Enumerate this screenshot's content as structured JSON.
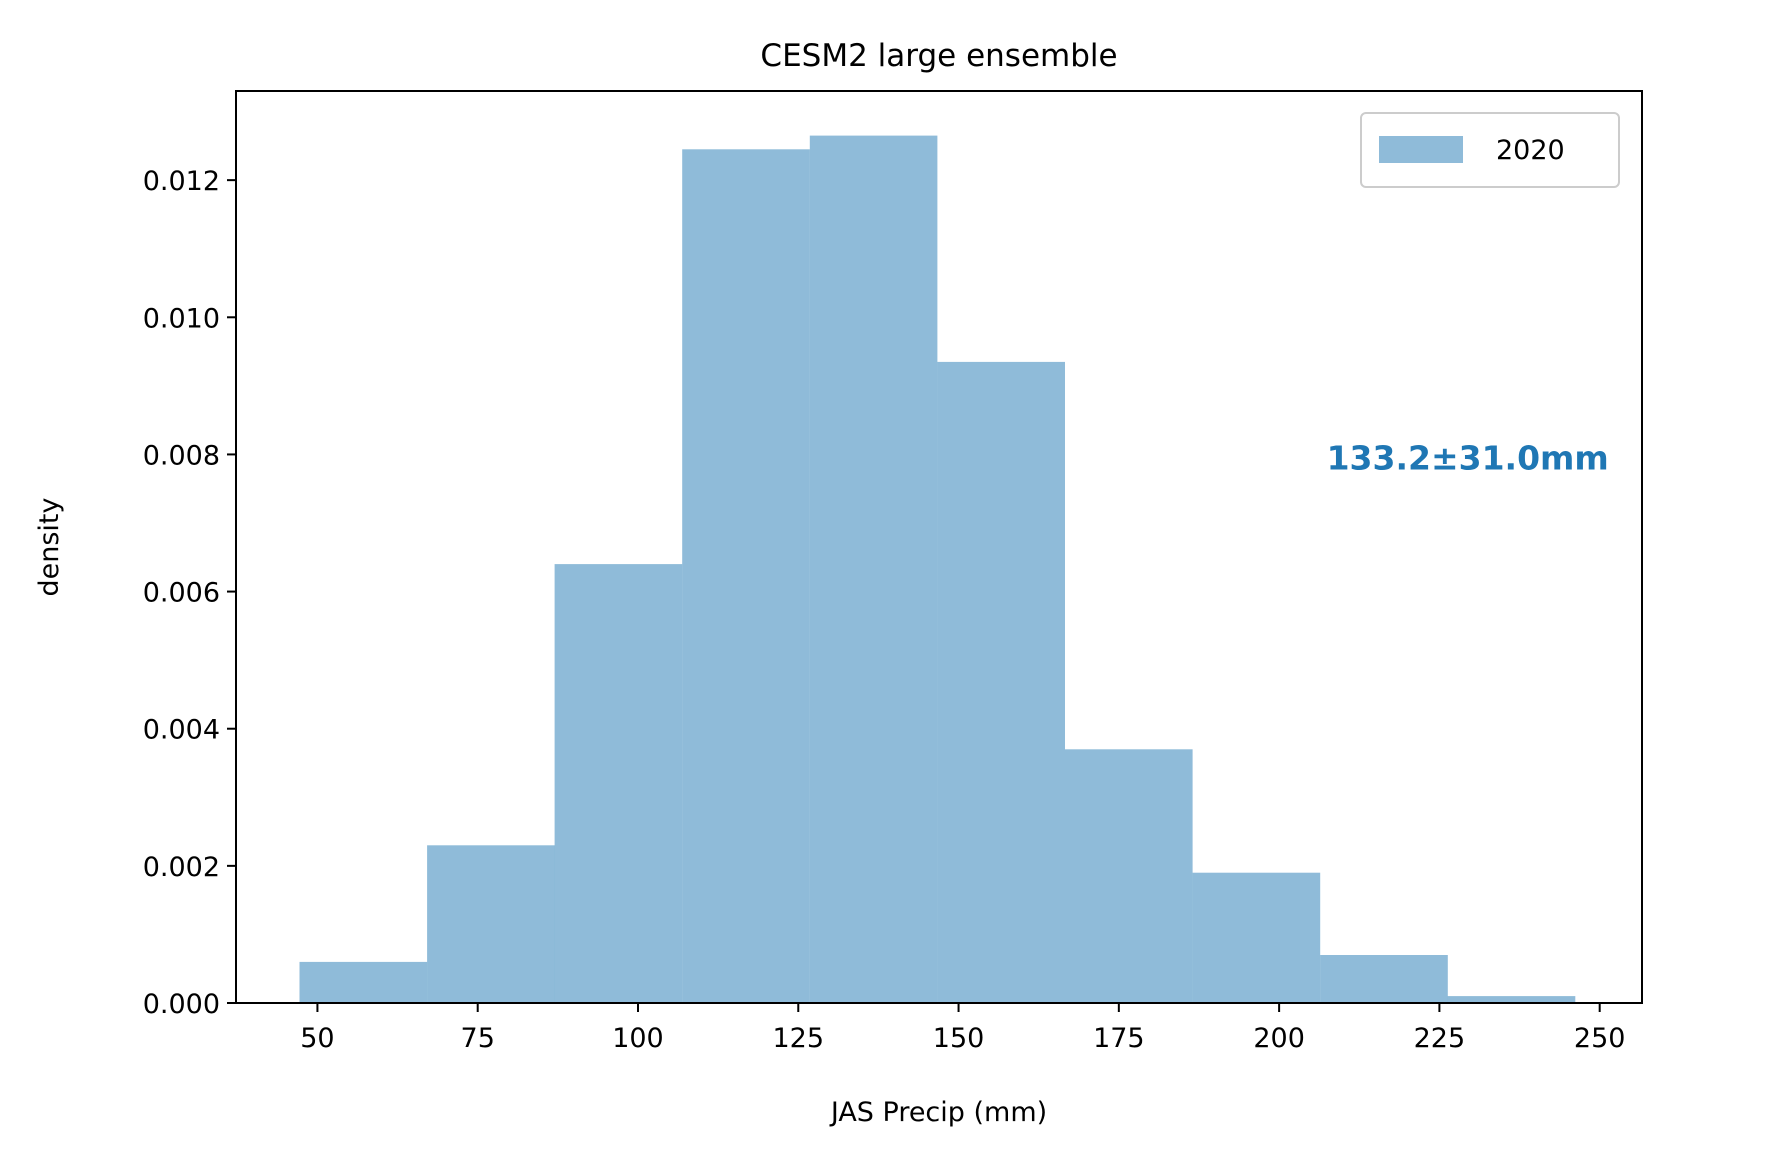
{
  "chart_data": {
    "type": "bar",
    "subtype": "histogram",
    "title": "CESM2 large ensemble",
    "xlabel": "JAS Precip (mm)",
    "ylabel": "density",
    "xlim": [
      37.3,
      256.6
    ],
    "ylim": [
      0,
      0.0133
    ],
    "xticks": [
      50,
      75,
      100,
      125,
      150,
      175,
      200,
      225,
      250
    ],
    "yticks": [
      0.0,
      0.002,
      0.004,
      0.006,
      0.008,
      0.01,
      0.012
    ],
    "ytick_labels": [
      "0.000",
      "0.002",
      "0.004",
      "0.006",
      "0.008",
      "0.010",
      "0.012"
    ],
    "grid": false,
    "legend_position": "top-right",
    "series": [
      {
        "name": "2020",
        "color": "#1f77b4",
        "alpha": 0.5,
        "bin_edges": [
          47.2,
          67.1,
          87.0,
          106.9,
          126.8,
          146.7,
          166.6,
          186.5,
          206.4,
          226.3,
          246.2
        ],
        "values": [
          0.0006,
          0.0023,
          0.0064,
          0.01245,
          0.01265,
          0.00935,
          0.0037,
          0.0019,
          0.0007,
          0.0001
        ]
      }
    ],
    "annotation": {
      "text": "133.2±31.0mm",
      "color": "#1f77b4",
      "x": 207.4,
      "y": 0.0081
    }
  }
}
